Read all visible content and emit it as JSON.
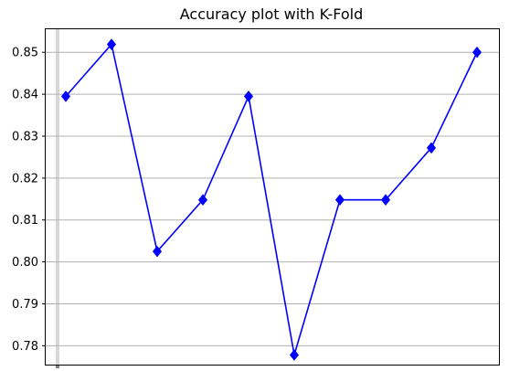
{
  "chart_data": {
    "type": "line",
    "title": "Accuracy plot with K-Fold",
    "xlabel": "",
    "ylabel": "",
    "x": [
      1,
      2,
      3,
      4,
      5,
      6,
      7,
      8,
      9,
      10
    ],
    "series": [
      {
        "values": [
          0.8395,
          0.8519,
          0.8025,
          0.8148,
          0.8395,
          0.7778,
          0.8148,
          0.8148,
          0.8272,
          0.85
        ],
        "color": "#0000ff",
        "marker": "diamond"
      }
    ],
    "ylim": [
      0.7755,
      0.8555
    ],
    "yticks": [
      "0.78",
      "0.79",
      "0.80",
      "0.81",
      "0.82",
      "0.83",
      "0.84",
      "0.85"
    ],
    "grid": "horizontal",
    "legend": "none"
  }
}
